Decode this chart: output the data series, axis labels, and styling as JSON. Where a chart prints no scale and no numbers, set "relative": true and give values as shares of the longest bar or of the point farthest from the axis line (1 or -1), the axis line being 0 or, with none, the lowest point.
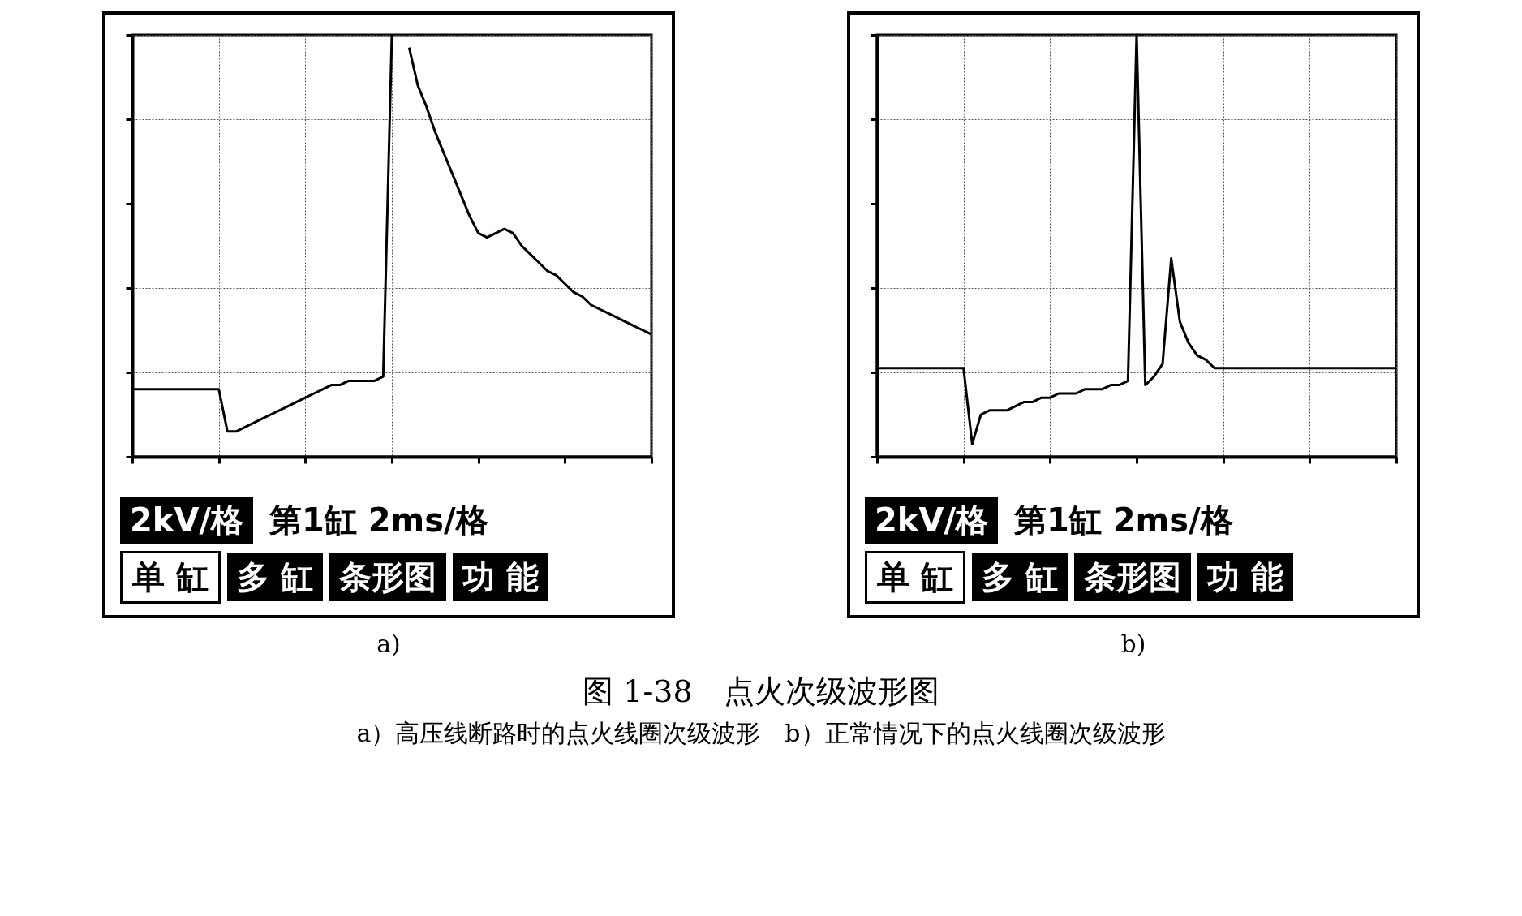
{
  "chart_data": [
    {
      "type": "line",
      "relative": true,
      "grid": true,
      "xlabel": "a)",
      "title": "图 1-38　点火次级波形图",
      "subtitle": "a）高压线断路时的点火线圈次级波形　b）正常情况下的点火线圈次级波形",
      "annotations": [
        "2kV/格",
        "第1缸  2ms/格",
        "单 缸",
        "多 缸",
        "条形图",
        "功 能"
      ],
      "categories": [
        null,
        null,
        null,
        null,
        null,
        null,
        null,
        null,
        null,
        null,
        null,
        null,
        null,
        null,
        null,
        null,
        null,
        null,
        null,
        null,
        null,
        null,
        null,
        null,
        null,
        null,
        null,
        null,
        null,
        null,
        null,
        null,
        null,
        null,
        null,
        null,
        null,
        null,
        null,
        null,
        null,
        null,
        null,
        null,
        null,
        null,
        null,
        null,
        null,
        null,
        null,
        null,
        null,
        null,
        null,
        null,
        null,
        null,
        null,
        null,
        null
      ],
      "series": [
        {
          "color": "#000000",
          "values": [
            0.16,
            0.16,
            0.16,
            0.16,
            0.16,
            0.16,
            0.16,
            0.16,
            0.16,
            0.16,
            0.16,
            0.06,
            0.06,
            0.07,
            0.08,
            0.09,
            0.1,
            0.11,
            0.12,
            0.13,
            0.14,
            0.15,
            0.16,
            0.17,
            0.17,
            0.18,
            0.18,
            0.18,
            0.18,
            0.19,
            1,
            null,
            0.97,
            0.88,
            0.83,
            0.77,
            0.72,
            0.67,
            0.62,
            0.57,
            0.53,
            0.52,
            0.53,
            0.54,
            0.53,
            0.5,
            0.48,
            0.46,
            0.44,
            0.43,
            0.41,
            0.39,
            0.38,
            0.36,
            0.35,
            0.34,
            0.33,
            0.32,
            0.31,
            0.3,
            0.29
          ]
        }
      ]
    },
    {
      "type": "line",
      "relative": true,
      "grid": true,
      "xlabel": "b)",
      "annotations": [
        "2kV/格",
        "第1缸  2ms/格",
        "单 缸",
        "多 缸",
        "条形图",
        "功 能"
      ],
      "categories": [
        null,
        null,
        null,
        null,
        null,
        null,
        null,
        null,
        null,
        null,
        null,
        null,
        null,
        null,
        null,
        null,
        null,
        null,
        null,
        null,
        null,
        null,
        null,
        null,
        null,
        null,
        null,
        null,
        null,
        null,
        null,
        null,
        null,
        null,
        null,
        null,
        null,
        null,
        null,
        null,
        null,
        null,
        null,
        null,
        null,
        null,
        null,
        null,
        null,
        null,
        null,
        null,
        null,
        null,
        null,
        null,
        null,
        null,
        null,
        null,
        null
      ],
      "series": [
        {
          "color": "#000000",
          "values": [
            0.21,
            0.21,
            0.21,
            0.21,
            0.21,
            0.21,
            0.21,
            0.21,
            0.21,
            0.21,
            0.21,
            0.03,
            0.1,
            0.11,
            0.11,
            0.11,
            0.12,
            0.13,
            0.13,
            0.14,
            0.14,
            0.15,
            0.15,
            0.15,
            0.16,
            0.16,
            0.16,
            0.17,
            0.17,
            0.18,
            1,
            0.17,
            0.19,
            0.22,
            0.47,
            0.32,
            0.27,
            0.24,
            0.23,
            0.21,
            0.21,
            0.21,
            0.21,
            0.21,
            0.21,
            0.21,
            0.21,
            0.21,
            0.21,
            0.21,
            0.21,
            0.21,
            0.21,
            0.21,
            0.21,
            0.21,
            0.21,
            0.21,
            0.21,
            0.21,
            0.21
          ]
        }
      ]
    }
  ]
}
